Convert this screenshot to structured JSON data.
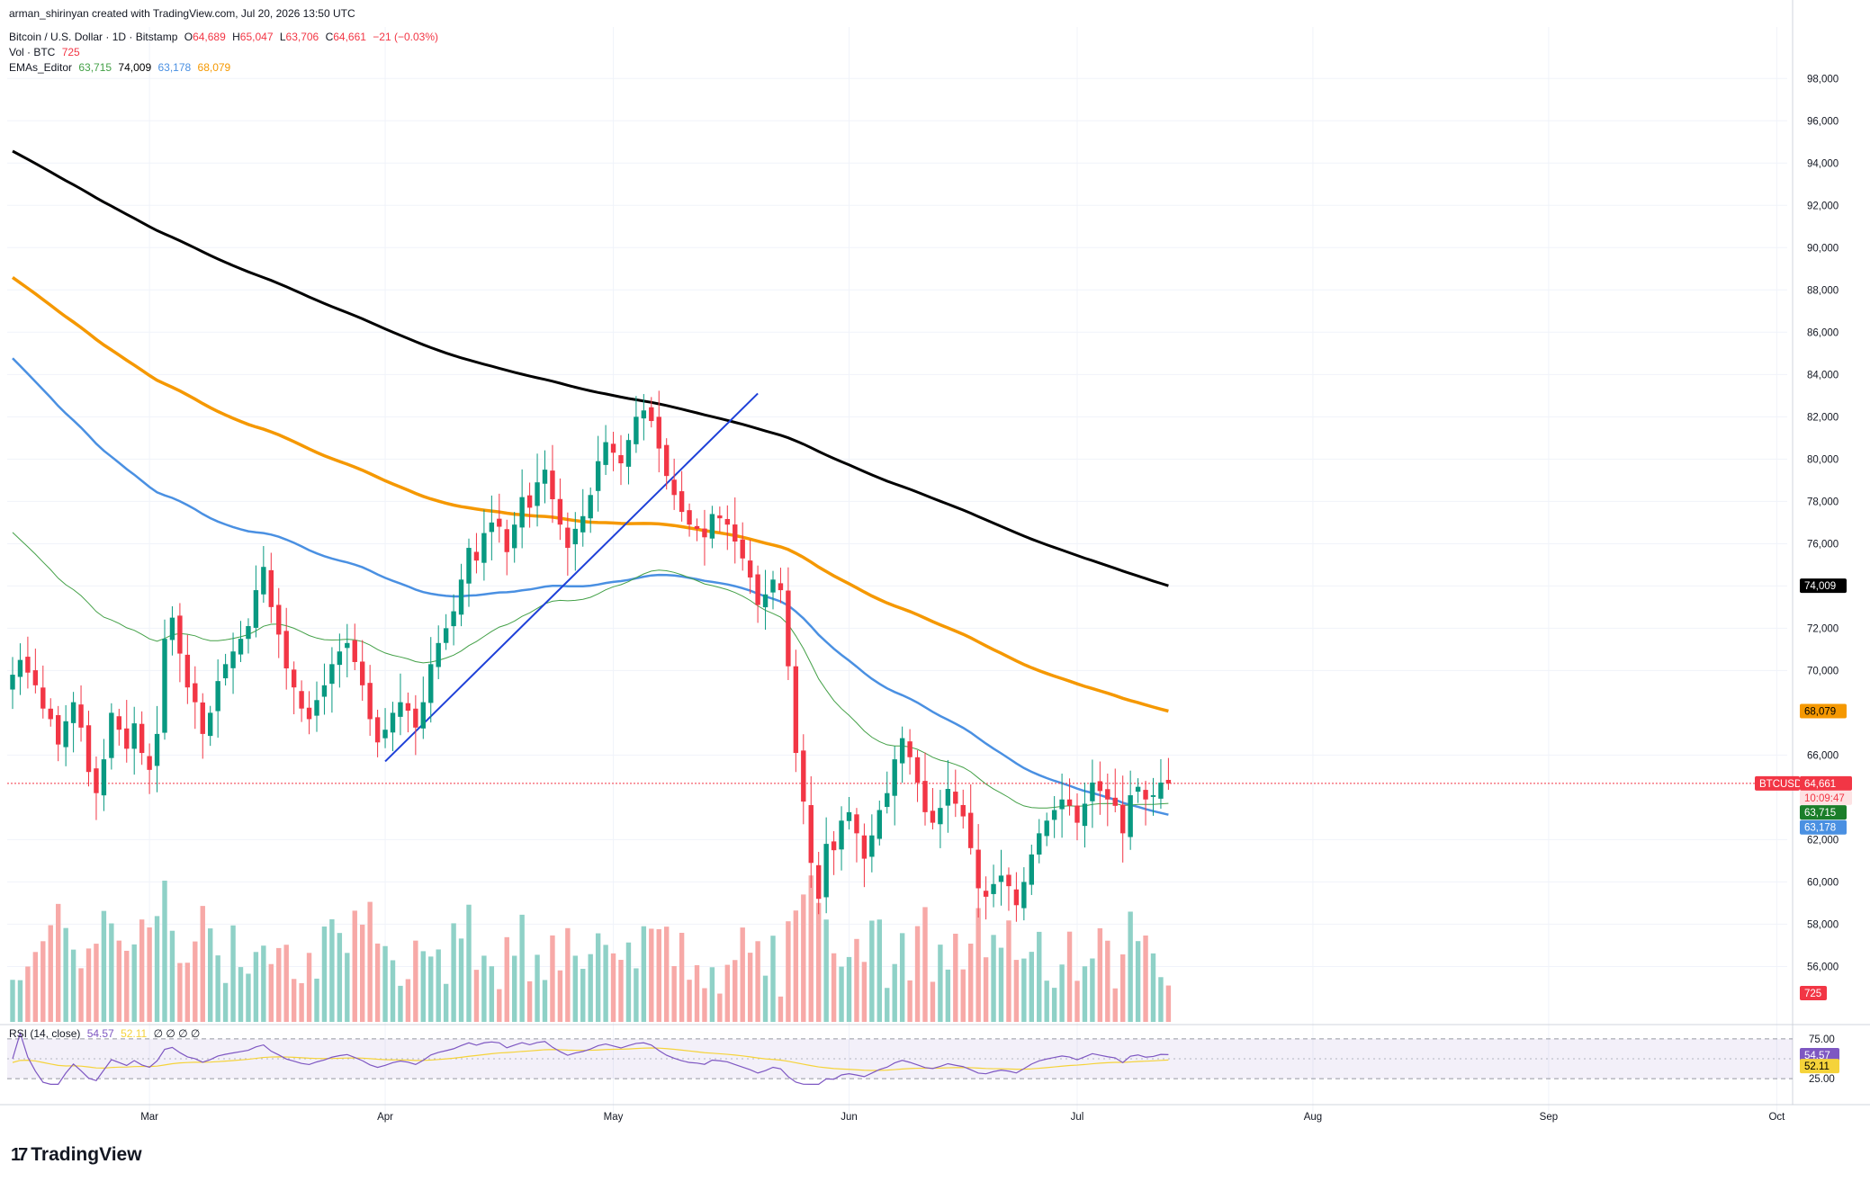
{
  "header": {
    "created_by": "arman_shirinyan created with TradingView.com, Jul 20, 2026 13:50 UTC",
    "symbol": "Bitcoin / U.S. Dollar · 1D · Bitstamp",
    "o_label": "O",
    "o_value": "64,689",
    "h_label": "H",
    "h_value": "65,047",
    "l_label": "L",
    "l_value": "63,706",
    "c_label": "C",
    "c_value": "64,661",
    "change": "−21 (−0.03%)",
    "vol_label": "Vol · BTC",
    "vol_value": "725",
    "ema_label": "EMAs_Editor",
    "ema_values": [
      "63,715",
      "74,009",
      "63,178",
      "68,079"
    ]
  },
  "rsi": {
    "label": "RSI (14, close)",
    "value": "54.57",
    "ma_value": "52.11",
    "extra": "∅ ∅ ∅ ∅",
    "levels": [
      75.0,
      25.0
    ],
    "level_labels": [
      "75.00",
      "25.00"
    ]
  },
  "badges": {
    "ema200": "74,009",
    "ema100": "68,079",
    "symbol": "BTCUSD",
    "price": "64,661",
    "countdown": "10:09:47",
    "ema20": "63,715",
    "ema50": "63,178",
    "volume": "725",
    "rsi": "54.57",
    "rsi_ma": "52.11"
  },
  "colors": {
    "up": "#089981",
    "down": "#f23645",
    "vol_up": "#8fd1c7",
    "vol_down": "#f7a9a7",
    "ema20": "#43a047",
    "ema50": "#4a90e2",
    "ema100": "#f59800",
    "ema200": "#000000",
    "trendline": "#1e40d8",
    "rsi": "#7e57c2",
    "rsi_ma": "#f5d33a"
  },
  "logo_text": "TradingView",
  "chart_data": {
    "type": "candlestick",
    "y_ticks": [
      "98,000",
      "96,000",
      "94,000",
      "92,000",
      "90,000",
      "88,000",
      "86,000",
      "84,000",
      "82,000",
      "80,000",
      "78,000",
      "76,000",
      "74,000",
      "72,000",
      "70,000",
      "66,000",
      "62,000",
      "60,000",
      "58,000",
      "56,000"
    ],
    "ylim": [
      54700,
      99500
    ],
    "x_ticks": [
      "Mar",
      "Apr",
      "May",
      "Jun",
      "Jul",
      "Aug",
      "Sep",
      "Oct"
    ],
    "x_tick_dates": [
      "2026-03-01",
      "2026-04-01",
      "2026-05-01",
      "2026-06-01",
      "2026-07-01",
      "2026-08-01",
      "2026-09-01",
      "2026-10-01"
    ],
    "start_date": "2026-02-11",
    "closes": [
      69800,
      70500,
      69900,
      69300,
      68200,
      67700,
      66500,
      67600,
      68500,
      67300,
      65200,
      64200,
      65800,
      68000,
      67200,
      66300,
      67500,
      66100,
      65300,
      67000,
      71500,
      72500,
      70800,
      69200,
      68500,
      67000,
      68000,
      69500,
      70300,
      70900,
      71500,
      72100,
      73800,
      74900,
      73000,
      71700,
      70100,
      69200,
      68200,
      67700,
      68600,
      69300,
      70300,
      70900,
      71300,
      70400,
      69300,
      67700,
      66600,
      67200,
      68000,
      68500,
      68100,
      67300,
      68500,
      70300,
      71300,
      72000,
      72800,
      74300,
      75800,
      75200,
      76500,
      77000,
      76800,
      75600,
      76900,
      78200,
      77700,
      78900,
      79500,
      78100,
      76900,
      75800,
      76700,
      77300,
      78300,
      79900,
      80800,
      80300,
      79800,
      80900,
      82000,
      82300,
      81800,
      80500,
      79200,
      78300,
      77500,
      76900,
      76700,
      76300,
      77400,
      77200,
      76900,
      76100,
      75300,
      74400,
      73100,
      73600,
      74300,
      73800,
      70200,
      66100,
      63800,
      60900,
      59200,
      61800,
      61500,
      62900,
      63300,
      62300,
      61100,
      62200,
      63400,
      64200,
      65800,
      66800,
      65900,
      64700,
      63300,
      62800,
      63500,
      64400,
      63700,
      63100,
      61600,
      59700,
      59300,
      59900,
      60300,
      59800,
      58900,
      60000,
      61300,
      62300,
      62900,
      63400,
      63900,
      63600,
      62800,
      63700,
      64700,
      64300,
      63900,
      63600,
      62300,
      64100,
      64500,
      63900,
      64100,
      64700,
      64661
    ],
    "ema200": {
      "start": 94700,
      "end": 74009
    },
    "ema100": {
      "start": 88800,
      "end": 68079
    },
    "ema50": {
      "start": 85100,
      "end": 63178
    },
    "ema20": {
      "start": 76900,
      "end": 63715
    },
    "trendline": [
      {
        "date": "2026-04-01",
        "price": 65700
      },
      {
        "date": "2026-05-20",
        "price": 83100
      }
    ]
  }
}
